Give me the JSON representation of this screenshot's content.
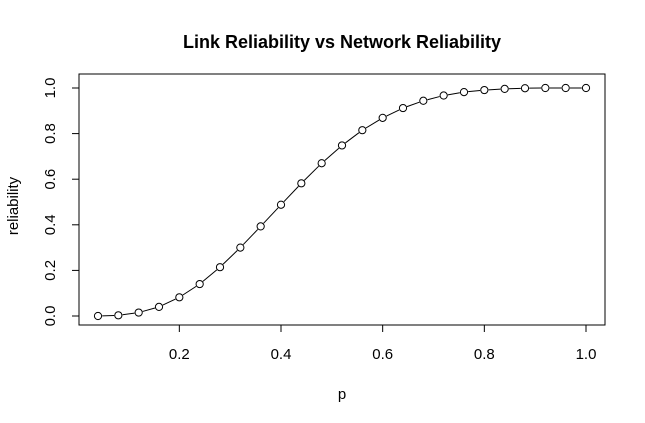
{
  "chart_data": {
    "type": "line",
    "title": "Link Reliability vs Network Reliability",
    "xlabel": "p",
    "ylabel": "reliability",
    "xlim": [
      0.04,
      1.0
    ],
    "ylim": [
      0.0,
      1.0
    ],
    "x_ticks": [
      "0.2",
      "0.4",
      "0.6",
      "0.8",
      "1.0"
    ],
    "y_ticks": [
      "0.0",
      "0.2",
      "0.4",
      "0.6",
      "0.8",
      "1.0"
    ],
    "grid": false,
    "legend": "none",
    "marker": "open-circle",
    "line_color": "#000000",
    "series": [
      {
        "x": [
          0.04,
          0.08,
          0.12,
          0.16,
          0.2,
          0.24,
          0.28,
          0.32,
          0.36,
          0.4,
          0.44,
          0.48,
          0.52,
          0.56,
          0.6,
          0.64,
          0.68,
          0.72,
          0.76,
          0.8,
          0.84,
          0.88,
          0.92,
          0.96,
          1.0
        ],
        "values": [
          0.0,
          0.003,
          0.015,
          0.04,
          0.082,
          0.14,
          0.214,
          0.3,
          0.393,
          0.488,
          0.582,
          0.67,
          0.748,
          0.815,
          0.869,
          0.912,
          0.944,
          0.967,
          0.982,
          0.991,
          0.996,
          0.999,
          1.0,
          1.0,
          1.0
        ]
      }
    ]
  }
}
